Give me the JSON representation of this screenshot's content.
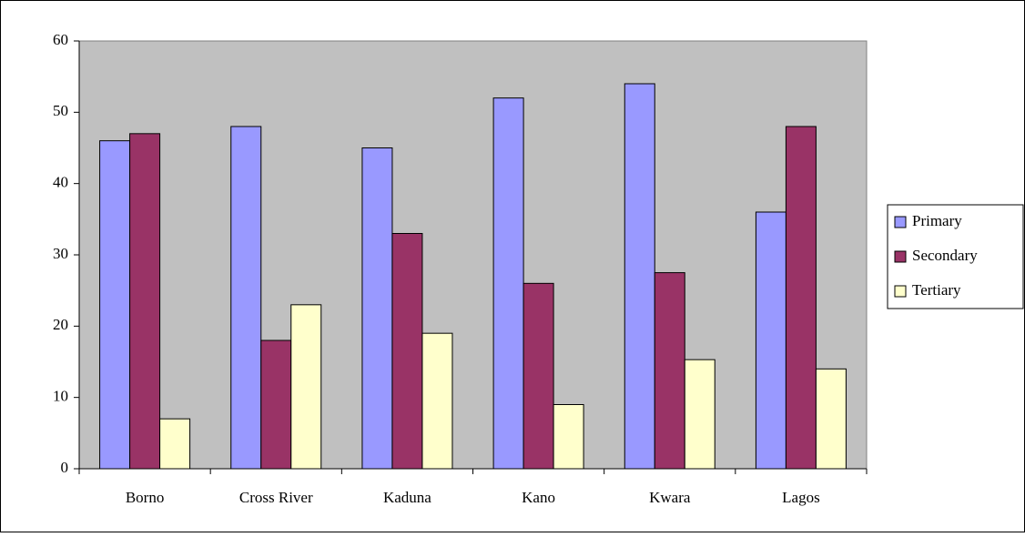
{
  "chart_data": {
    "type": "bar",
    "categories": [
      "Borno",
      "Cross River",
      "Kaduna",
      "Kano",
      "Kwara",
      "Lagos"
    ],
    "series": [
      {
        "name": "Primary",
        "color": "#9999ff",
        "values": [
          46,
          48,
          45,
          52,
          54,
          36
        ]
      },
      {
        "name": "Secondary",
        "color": "#993366",
        "values": [
          47,
          18,
          33,
          26,
          27.5,
          48
        ]
      },
      {
        "name": "Tertiary",
        "color": "#ffffcc",
        "values": [
          7,
          23,
          19,
          9,
          15.3,
          14
        ]
      }
    ],
    "ylim": [
      0,
      60
    ],
    "yticks": [
      0,
      10,
      20,
      30,
      40,
      50,
      60
    ],
    "plot_background": "#c0c0c0",
    "legend": "right"
  }
}
